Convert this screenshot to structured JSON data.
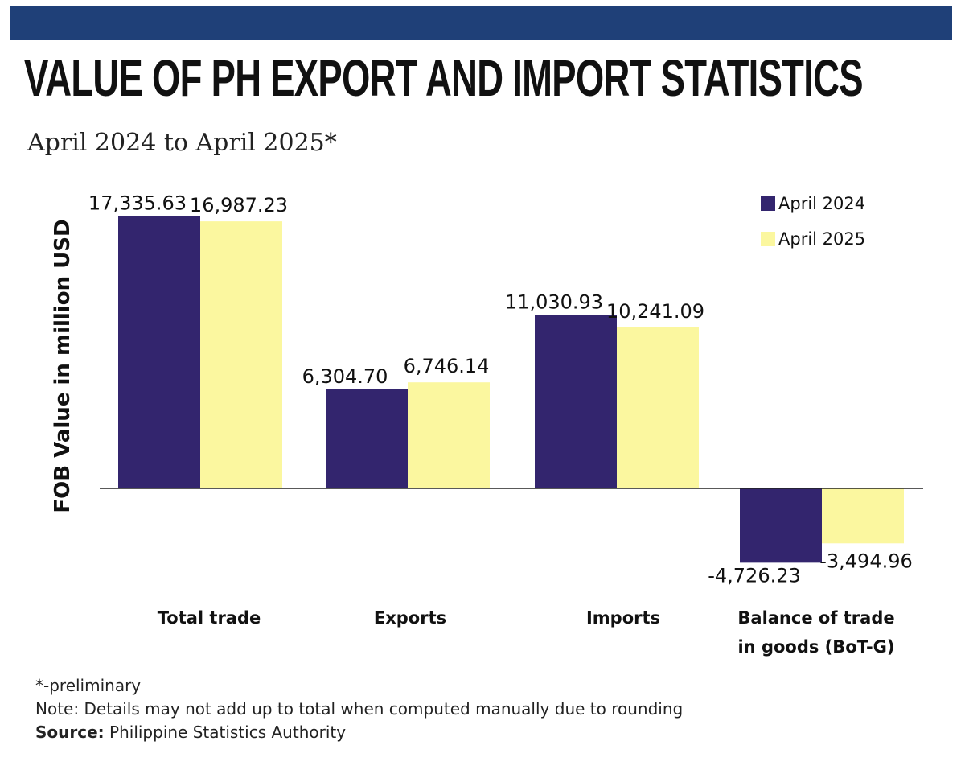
{
  "header": {
    "title": "VALUE OF PH EXPORT AND IMPORT STATISTICS",
    "subtitle": "April 2024 to April 2025*",
    "bar_color": "#1f4078"
  },
  "chart_data": {
    "type": "bar",
    "title": "VALUE OF PH EXPORT AND IMPORT STATISTICS",
    "subtitle": "April 2024 to April 2025*",
    "ylabel": "FOB Value in million USD",
    "xlabel": "",
    "categories": [
      "Total trade",
      "Exports",
      "Imports",
      "Balance of trade in goods (BoT-G)"
    ],
    "category_lines": [
      [
        "Total trade"
      ],
      [
        "Exports"
      ],
      [
        "Imports"
      ],
      [
        "Balance of trade",
        "in goods (BoT-G)"
      ]
    ],
    "series": [
      {
        "name": "April 2024",
        "color": "#33256e",
        "values": [
          17335.63,
          6304.7,
          11030.93,
          -4726.23
        ],
        "labels": [
          "17,335.63",
          "6,304.70",
          "11,030.93",
          "-4,726.23"
        ]
      },
      {
        "name": "April 2025",
        "color": "#fbf79f",
        "values": [
          16987.23,
          6746.14,
          10241.09,
          -3494.96
        ],
        "labels": [
          "16,987.23",
          "6,746.14",
          "10,241.09",
          "-3,494.96"
        ]
      }
    ],
    "ylim": [
      -5000,
      18000
    ],
    "grid": false,
    "legend": "top-right"
  },
  "footer": {
    "preliminary": "*-preliminary",
    "note": "Note: Details may not add up to total when computed manually due to rounding",
    "source_label": "Source:",
    "source_text": " Philippine Statistics Authority"
  }
}
